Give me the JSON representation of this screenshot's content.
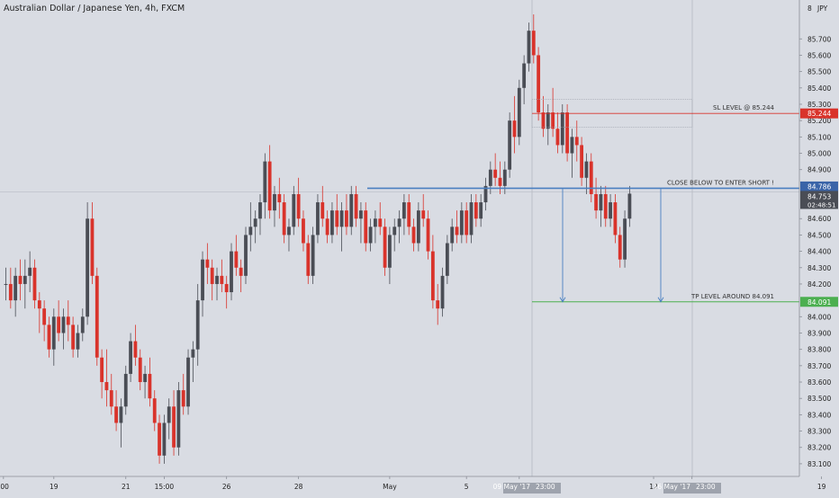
{
  "header": {
    "title": "Australian Dollar / Japanese Yen, 4h, FXCM"
  },
  "price_axis": {
    "unit": "JPY",
    "labels": [
      "85.700",
      "85.600",
      "85.500",
      "85.400",
      "85.300",
      "85.200",
      "85.100",
      "85.000",
      "84.900",
      "84.600",
      "84.500",
      "84.400",
      "84.300",
      "84.200",
      "84.000",
      "83.900",
      "83.800",
      "83.700",
      "83.600",
      "83.500",
      "83.400",
      "83.300",
      "83.200",
      "83.100"
    ],
    "values": [
      85.7,
      85.6,
      85.5,
      85.4,
      85.3,
      85.2,
      85.1,
      85.0,
      84.9,
      84.6,
      84.5,
      84.4,
      84.3,
      84.2,
      84.0,
      83.9,
      83.8,
      83.7,
      83.6,
      83.5,
      83.4,
      83.3,
      83.2,
      83.1
    ],
    "top_partial_label": "8"
  },
  "time_axis": {
    "ticks": [
      {
        "label": ":00",
        "bar": -0.5
      },
      {
        "label": "19",
        "bar": 10
      },
      {
        "label": "21",
        "bar": 25
      },
      {
        "label": "15:00",
        "bar": 33
      },
      {
        "label": "26",
        "bar": 46
      },
      {
        "label": "28",
        "bar": 61
      },
      {
        "label": "May",
        "bar": 80
      },
      {
        "label": "5",
        "bar": 96
      },
      {
        "label": "15:00",
        "bar": 107
      },
      {
        "label": "12",
        "bar": 135
      },
      {
        "label": "15:00",
        "bar": 143
      },
      {
        "label": "19",
        "bar": 170
      }
    ],
    "highlight_1": "09 May '17",
    "highlight_1_time": "23:00",
    "highlight_2": "16 May '17",
    "highlight_2_time": "23:00"
  },
  "badges": {
    "sl": "85.244",
    "entry": "84.786",
    "last_price": "84.753",
    "countdown": "02:48:51",
    "tp": "84.091"
  },
  "annotations": {
    "sl_label": "SL LEVEL @ 85.244",
    "entry_label": "CLOSE BELOW TO ENTER SHORT !",
    "tp_label": "TP LEVEL AROUND 84.091"
  },
  "colors": {
    "background": "#d9dce3",
    "bull": "#4a4d55",
    "bear": "#d9332b",
    "sl": "#d9332b",
    "entry": "#4a7fc1",
    "tp": "#4caf50",
    "badge_entry": "#3a64a8",
    "badge_last": "#4a4d55"
  },
  "chart_data": {
    "type": "candlestick",
    "symbol": "AUDJPY",
    "interval": "4h",
    "ylim": [
      83.05,
      85.85
    ],
    "levels": {
      "stop_loss": 85.244,
      "entry": 84.786,
      "take_profit": 84.091,
      "last": 84.753
    },
    "bars": [
      [
        84.2,
        84.3,
        84.1,
        84.2
      ],
      [
        84.2,
        84.3,
        84.05,
        84.1
      ],
      [
        84.1,
        84.3,
        84.0,
        84.25
      ],
      [
        84.25,
        84.35,
        84.1,
        84.2
      ],
      [
        84.2,
        84.35,
        84.05,
        84.25
      ],
      [
        84.25,
        84.4,
        84.15,
        84.3
      ],
      [
        84.3,
        84.35,
        84.05,
        84.1
      ],
      [
        84.1,
        84.15,
        83.9,
        84.05
      ],
      [
        84.05,
        84.1,
        83.85,
        83.95
      ],
      [
        83.95,
        84.0,
        83.75,
        83.8
      ],
      [
        83.8,
        84.05,
        83.7,
        84.0
      ],
      [
        84.0,
        84.1,
        83.85,
        83.9
      ],
      [
        83.9,
        84.05,
        83.8,
        84.0
      ],
      [
        84.0,
        84.1,
        83.85,
        83.95
      ],
      [
        83.95,
        84.0,
        83.75,
        83.8
      ],
      [
        83.8,
        83.95,
        83.75,
        83.9
      ],
      [
        83.9,
        84.05,
        83.85,
        84.0
      ],
      [
        84.0,
        84.7,
        83.95,
        84.6
      ],
      [
        84.6,
        84.7,
        84.2,
        84.25
      ],
      [
        84.25,
        84.3,
        83.7,
        83.75
      ],
      [
        83.75,
        83.8,
        83.5,
        83.6
      ],
      [
        83.6,
        83.8,
        83.45,
        83.55
      ],
      [
        83.55,
        83.65,
        83.4,
        83.45
      ],
      [
        83.45,
        83.55,
        83.3,
        83.35
      ],
      [
        83.35,
        83.5,
        83.2,
        83.45
      ],
      [
        83.45,
        83.7,
        83.4,
        83.65
      ],
      [
        83.65,
        83.9,
        83.6,
        83.85
      ],
      [
        83.85,
        83.95,
        83.7,
        83.75
      ],
      [
        83.75,
        83.8,
        83.55,
        83.6
      ],
      [
        83.6,
        83.7,
        83.5,
        83.65
      ],
      [
        83.65,
        83.75,
        83.45,
        83.5
      ],
      [
        83.5,
        83.55,
        83.3,
        83.35
      ],
      [
        83.35,
        83.4,
        83.1,
        83.15
      ],
      [
        83.15,
        83.4,
        83.1,
        83.35
      ],
      [
        83.35,
        83.5,
        83.25,
        83.45
      ],
      [
        83.45,
        83.55,
        83.15,
        83.2
      ],
      [
        83.2,
        83.6,
        83.15,
        83.55
      ],
      [
        83.55,
        83.65,
        83.4,
        83.45
      ],
      [
        83.45,
        83.8,
        83.4,
        83.75
      ],
      [
        83.75,
        83.85,
        83.6,
        83.8
      ],
      [
        83.8,
        84.2,
        83.7,
        84.1
      ],
      [
        84.1,
        84.4,
        84.0,
        84.35
      ],
      [
        84.35,
        84.45,
        84.2,
        84.3
      ],
      [
        84.3,
        84.35,
        84.1,
        84.2
      ],
      [
        84.2,
        84.3,
        84.1,
        84.25
      ],
      [
        84.25,
        84.35,
        84.15,
        84.2
      ],
      [
        84.2,
        84.25,
        84.05,
        84.15
      ],
      [
        84.15,
        84.45,
        84.1,
        84.4
      ],
      [
        84.4,
        84.5,
        84.25,
        84.3
      ],
      [
        84.3,
        84.35,
        84.15,
        84.25
      ],
      [
        84.25,
        84.55,
        84.2,
        84.5
      ],
      [
        84.5,
        84.7,
        84.4,
        84.55
      ],
      [
        84.55,
        84.65,
        84.45,
        84.6
      ],
      [
        84.6,
        84.75,
        84.5,
        84.7
      ],
      [
        84.7,
        85.0,
        84.6,
        84.95
      ],
      [
        84.95,
        85.05,
        84.6,
        84.65
      ],
      [
        84.65,
        84.8,
        84.55,
        84.75
      ],
      [
        84.75,
        84.85,
        84.6,
        84.7
      ],
      [
        84.7,
        84.75,
        84.45,
        84.5
      ],
      [
        84.5,
        84.6,
        84.4,
        84.55
      ],
      [
        84.55,
        84.8,
        84.5,
        84.75
      ],
      [
        84.75,
        84.85,
        84.55,
        84.6
      ],
      [
        84.6,
        84.65,
        84.4,
        84.45
      ],
      [
        84.45,
        84.5,
        84.2,
        84.25
      ],
      [
        84.25,
        84.55,
        84.2,
        84.5
      ],
      [
        84.5,
        84.75,
        84.45,
        84.7
      ],
      [
        84.7,
        84.8,
        84.55,
        84.6
      ],
      [
        84.6,
        84.65,
        84.45,
        84.5
      ],
      [
        84.5,
        84.7,
        84.45,
        84.65
      ],
      [
        84.65,
        84.75,
        84.5,
        84.55
      ],
      [
        84.55,
        84.7,
        84.4,
        84.65
      ],
      [
        84.65,
        84.75,
        84.5,
        84.55
      ],
      [
        84.55,
        84.8,
        84.5,
        84.75
      ],
      [
        84.75,
        84.8,
        84.55,
        84.6
      ],
      [
        84.6,
        84.7,
        84.45,
        84.65
      ],
      [
        84.65,
        84.7,
        84.4,
        84.45
      ],
      [
        84.45,
        84.6,
        84.4,
        84.55
      ],
      [
        84.55,
        84.65,
        84.45,
        84.6
      ],
      [
        84.6,
        84.7,
        84.5,
        84.55
      ],
      [
        84.55,
        84.6,
        84.25,
        84.3
      ],
      [
        84.3,
        84.55,
        84.2,
        84.5
      ],
      [
        84.5,
        84.6,
        84.4,
        84.55
      ],
      [
        84.55,
        84.65,
        84.45,
        84.6
      ],
      [
        84.6,
        84.75,
        84.5,
        84.7
      ],
      [
        84.7,
        84.75,
        84.5,
        84.55
      ],
      [
        84.55,
        84.6,
        84.4,
        84.45
      ],
      [
        84.45,
        84.7,
        84.4,
        84.65
      ],
      [
        84.65,
        84.75,
        84.55,
        84.6
      ],
      [
        84.6,
        84.65,
        84.35,
        84.4
      ],
      [
        84.4,
        84.5,
        84.05,
        84.1
      ],
      [
        84.1,
        84.2,
        83.95,
        84.05
      ],
      [
        84.05,
        84.3,
        84.0,
        84.25
      ],
      [
        84.25,
        84.5,
        84.2,
        84.45
      ],
      [
        84.45,
        84.6,
        84.4,
        84.55
      ],
      [
        84.55,
        84.65,
        84.45,
        84.5
      ],
      [
        84.5,
        84.7,
        84.45,
        84.65
      ],
      [
        84.65,
        84.7,
        84.45,
        84.5
      ],
      [
        84.5,
        84.75,
        84.45,
        84.7
      ],
      [
        84.7,
        84.75,
        84.55,
        84.6
      ],
      [
        84.6,
        84.75,
        84.55,
        84.7
      ],
      [
        84.7,
        84.85,
        84.65,
        84.8
      ],
      [
        84.8,
        84.95,
        84.75,
        84.9
      ],
      [
        84.9,
        85.0,
        84.8,
        84.85
      ],
      [
        84.85,
        84.95,
        84.75,
        84.8
      ],
      [
        84.8,
        84.95,
        84.75,
        84.9
      ],
      [
        84.9,
        85.25,
        84.85,
        85.2
      ],
      [
        85.2,
        85.35,
        85.0,
        85.1
      ],
      [
        85.1,
        85.45,
        85.05,
        85.4
      ],
      [
        85.4,
        85.6,
        85.3,
        85.55
      ],
      [
        85.55,
        85.8,
        85.5,
        85.75
      ],
      [
        85.75,
        85.85,
        85.55,
        85.6
      ],
      [
        85.6,
        85.65,
        85.2,
        85.25
      ],
      [
        85.25,
        85.35,
        85.1,
        85.15
      ],
      [
        85.15,
        85.3,
        85.05,
        85.25
      ],
      [
        85.25,
        85.4,
        85.1,
        85.15
      ],
      [
        85.15,
        85.25,
        85.0,
        85.05
      ],
      [
        85.05,
        85.3,
        85.0,
        85.25
      ],
      [
        85.25,
        85.3,
        84.95,
        85.0
      ],
      [
        85.0,
        85.15,
        84.85,
        85.1
      ],
      [
        85.1,
        85.2,
        84.95,
        85.05
      ],
      [
        85.05,
        85.1,
        84.8,
        84.85
      ],
      [
        84.85,
        85.0,
        84.75,
        84.95
      ],
      [
        84.95,
        85.0,
        84.7,
        84.75
      ],
      [
        84.75,
        84.85,
        84.6,
        84.65
      ],
      [
        84.65,
        84.8,
        84.55,
        84.75
      ],
      [
        84.75,
        84.8,
        84.55,
        84.6
      ],
      [
        84.6,
        84.75,
        84.55,
        84.7
      ],
      [
        84.7,
        84.75,
        84.45,
        84.5
      ],
      [
        84.5,
        84.55,
        84.3,
        84.35
      ],
      [
        84.35,
        84.65,
        84.3,
        84.6
      ],
      [
        84.6,
        84.8,
        84.55,
        84.753
      ]
    ]
  }
}
